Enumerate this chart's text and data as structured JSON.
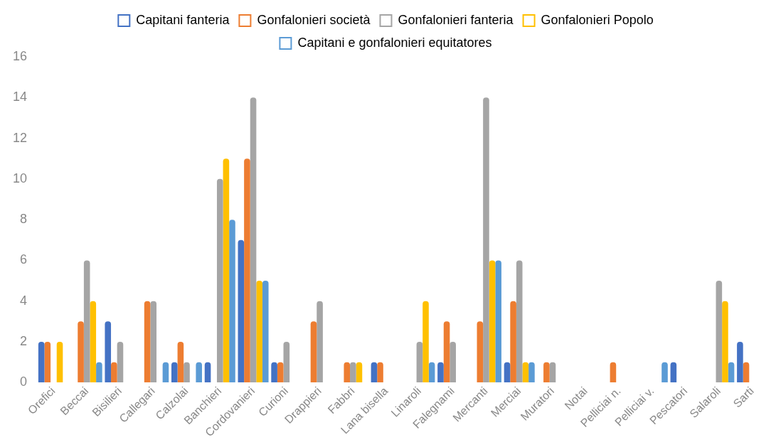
{
  "chart_data": {
    "type": "bar",
    "categories": [
      "Orefici",
      "Beccai",
      "Bisilieri",
      "Callegari",
      "Calzolai",
      "Banchieri",
      "Cordovanieri",
      "Curioni",
      "Drappieri",
      "Fabbri",
      "Lana bisella",
      "Linaroli",
      "Falegnami",
      "Mercanti",
      "Merciai",
      "Muratori",
      "Notai",
      "Pelliciai n.",
      "Pelliciai v.",
      "Pescatori",
      "Salaroli",
      "Sarti"
    ],
    "series": [
      {
        "name": "Capitani fanteria",
        "color": "#4472c4",
        "values": [
          2,
          0,
          3,
          0,
          1,
          1,
          7,
          1,
          0,
          0,
          1,
          0,
          1,
          0,
          1,
          0,
          0,
          0,
          0,
          1,
          0,
          2
        ]
      },
      {
        "name": "Gonfalonieri società",
        "color": "#ed7d31",
        "values": [
          2,
          3,
          1,
          4,
          2,
          0,
          11,
          1,
          3,
          1,
          1,
          0,
          3,
          3,
          4,
          1,
          0,
          1,
          0,
          0,
          0,
          1
        ]
      },
      {
        "name": "Gonfalonieri fanteria",
        "color": "#a5a5a5",
        "values": [
          0,
          6,
          2,
          4,
          1,
          10,
          14,
          2,
          4,
          1,
          0,
          2,
          2,
          14,
          6,
          1,
          0,
          0,
          0,
          0,
          5,
          null
        ]
      },
      {
        "name": "Gonfalonieri Popolo",
        "color": "#ffc000",
        "values": [
          2,
          4,
          0,
          0,
          0,
          11,
          5,
          0,
          0,
          1,
          0,
          4,
          0,
          6,
          1,
          0,
          0,
          0,
          0,
          0,
          4,
          null
        ]
      },
      {
        "name": "Capitani e gonfalonieri equitatores",
        "color": "#5b9bd5",
        "values": [
          0,
          1,
          0,
          1,
          1,
          8,
          5,
          0,
          0,
          0,
          0,
          1,
          0,
          6,
          1,
          0,
          0,
          0,
          1,
          0,
          1,
          null
        ]
      }
    ],
    "ylim": [
      0,
      16
    ],
    "yticks": [
      0,
      2,
      4,
      6,
      8,
      10,
      12,
      14,
      16
    ],
    "grid": false,
    "legend": "top"
  }
}
